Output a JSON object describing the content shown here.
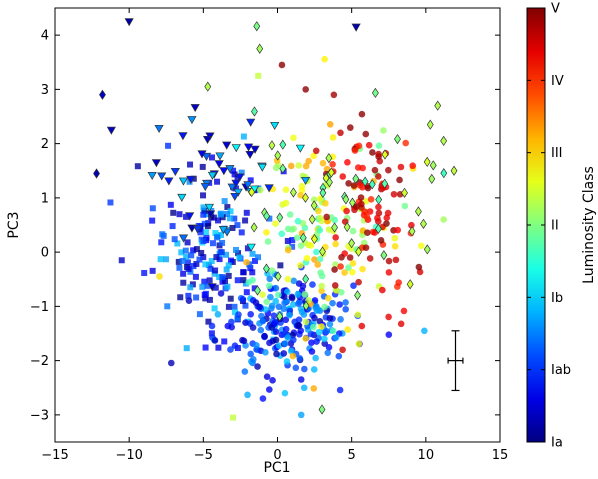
{
  "chart_data": {
    "type": "scatter",
    "title": "",
    "xlabel": "PC1",
    "ylabel": "PC3",
    "xlim": [
      -15,
      15
    ],
    "ylim": [
      -3.5,
      4.5
    ],
    "x_ticks": [
      -15,
      -10,
      -5,
      0,
      5,
      10,
      15
    ],
    "x_tick_labels": [
      "−15",
      "−10",
      "−5",
      "0",
      "5",
      "10",
      "15"
    ],
    "y_ticks": [
      -3,
      -2,
      -1,
      0,
      1,
      2,
      3,
      4
    ],
    "y_tick_labels": [
      "−3",
      "−2",
      "−1",
      "0",
      "1",
      "2",
      "3",
      "4"
    ],
    "colorbar": {
      "label": "Luminosity Class",
      "range": [
        0,
        6
      ],
      "ticks": [
        0,
        1,
        2,
        3,
        4,
        5,
        6
      ],
      "tick_labels": [
        "Ia",
        "Iab",
        "Ib",
        "II",
        "III",
        "IV",
        "V"
      ],
      "colormap": "jet"
    },
    "error_bar": {
      "x": 12.0,
      "y": -2.0,
      "xerr": 0.5,
      "yerr": 0.55
    },
    "marker_groups": [
      {
        "marker": "square",
        "class_range": [
          0.0,
          2.0
        ],
        "count": 190,
        "x_mean": -4.3,
        "x_sd": 2.0,
        "y_mean": 0.05,
        "y_sd": 0.75
      },
      {
        "marker": "circle",
        "class_range": [
          0.2,
          2.0
        ],
        "count": 220,
        "x_mean": 0.3,
        "x_sd": 2.2,
        "y_mean": -1.35,
        "y_sd": 0.45
      },
      {
        "marker": "circle",
        "class_range": [
          2.5,
          4.3
        ],
        "count": 150,
        "x_mean": 2.5,
        "x_sd": 2.6,
        "y_mean": 0.4,
        "y_sd": 1.0
      },
      {
        "marker": "circle",
        "class_range": [
          5.0,
          6.0
        ],
        "count": 100,
        "x_mean": 6.2,
        "x_sd": 1.6,
        "y_mean": 0.9,
        "y_sd": 0.8
      },
      {
        "marker": "triangle-down",
        "class_range": [
          0.3,
          2.3
        ],
        "count": 55,
        "x_mean": -4.0,
        "x_sd": 2.6,
        "y_mean": 1.3,
        "y_sd": 0.6
      },
      {
        "marker": "diamond",
        "class_range": [
          2.6,
          3.6
        ],
        "count": 55,
        "x_mean": 4.0,
        "x_sd": 3.5,
        "y_mean": 1.0,
        "y_sd": 0.9
      }
    ],
    "points": [
      {
        "x": -10.0,
        "y": 4.25,
        "class": 0.2,
        "marker": "triangle-down"
      },
      {
        "x": 5.3,
        "y": 4.15,
        "class": 0.3,
        "marker": "triangle-down"
      },
      {
        "x": -11.8,
        "y": 2.9,
        "class": 0.4,
        "marker": "diamond"
      },
      {
        "x": -11.2,
        "y": 2.25,
        "class": 0.4,
        "marker": "triangle-down"
      },
      {
        "x": -12.2,
        "y": 1.45,
        "class": 0.3,
        "marker": "diamond"
      },
      {
        "x": -1.2,
        "y": 3.75,
        "class": 3.2,
        "marker": "diamond"
      },
      {
        "x": -4.7,
        "y": 3.05,
        "class": 3.3,
        "marker": "diamond"
      },
      {
        "x": 10.8,
        "y": 2.7,
        "class": 3.3,
        "marker": "diamond"
      },
      {
        "x": 10.3,
        "y": 2.35,
        "class": 3.3,
        "marker": "diamond"
      },
      {
        "x": 11.2,
        "y": 2.05,
        "class": 3.3,
        "marker": "diamond"
      },
      {
        "x": 11.9,
        "y": 1.5,
        "class": 3.4,
        "marker": "diamond"
      },
      {
        "x": 10.5,
        "y": 1.6,
        "class": 3.2,
        "marker": "diamond"
      },
      {
        "x": 10.4,
        "y": 1.35,
        "class": 3.2,
        "marker": "diamond"
      },
      {
        "x": 10.1,
        "y": 0.05,
        "class": 3.2,
        "marker": "diamond"
      },
      {
        "x": 3.0,
        "y": -2.9,
        "class": 3.0,
        "marker": "diamond"
      },
      {
        "x": -3.0,
        "y": -3.05,
        "class": 3.4,
        "marker": "square"
      },
      {
        "x": 1.6,
        "y": -3.0,
        "class": 1.7,
        "marker": "circle"
      },
      {
        "x": 1.8,
        "y": -2.5,
        "class": 1.8,
        "marker": "circle"
      },
      {
        "x": 0.5,
        "y": -2.6,
        "class": 1.9,
        "marker": "circle"
      },
      {
        "x": 9.9,
        "y": -1.45,
        "class": 1.8,
        "marker": "circle"
      },
      {
        "x": 3.8,
        "y": 2.9,
        "class": 5.8,
        "marker": "circle"
      },
      {
        "x": 1.9,
        "y": 3.0,
        "class": 5.9,
        "marker": "circle"
      },
      {
        "x": 0.3,
        "y": 3.45,
        "class": 5.9,
        "marker": "circle"
      },
      {
        "x": -1.3,
        "y": 3.25,
        "class": 3.4,
        "marker": "square"
      },
      {
        "x": -10.5,
        "y": -0.15,
        "class": 0.4,
        "marker": "square"
      },
      {
        "x": 11.2,
        "y": 0.6,
        "class": 3.2,
        "marker": "circle"
      },
      {
        "x": 9.5,
        "y": 0.75,
        "class": 3.3,
        "marker": "diamond"
      }
    ]
  }
}
